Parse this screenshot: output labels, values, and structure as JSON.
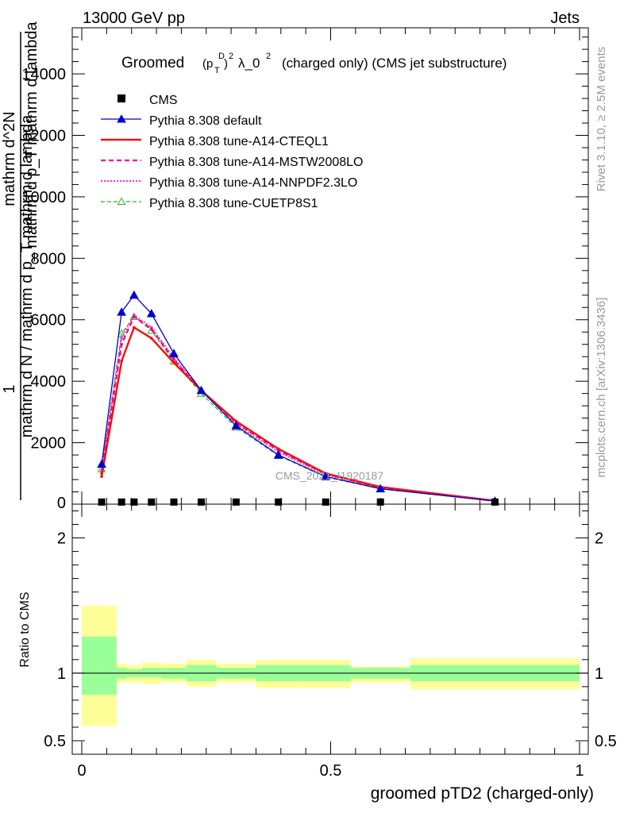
{
  "header": {
    "left": "13000 GeV pp",
    "right": "Jets"
  },
  "side_labels": {
    "rivet": "Rivet 3.1.10, ≥ 2.5M events",
    "mcplots": "mcplots.cern.ch [arXiv:1306.3436]"
  },
  "watermark": "CMS_2021_I1920187",
  "chart_data": [
    {
      "type": "line",
      "title_main": "Groomed",
      "title_p": "(p",
      "title_p_sub": "T",
      "title_p_sup": "D",
      "title_close": ")",
      "title_sq": "2",
      "title_lambda": "λ_0",
      "title_rest": "(charged only) (CMS jet substructure)",
      "ylabel": "mathrm d N / mathrm d p_T mathrm d lambda",
      "ylabel_frac": "mathrm d^2N",
      "ylabel_frac_den": "mathrm d p_T mathrm d lambda",
      "ylabel_one": "1",
      "xlim": [
        0,
        1
      ],
      "ylim": [
        0,
        15500
      ],
      "yticks": [
        2000,
        4000,
        6000,
        8000,
        10000,
        12000,
        14000
      ],
      "ytick_labels": [
        "2000",
        "4000",
        "6000",
        "8000",
        "10000",
        "12000",
        "14000"
      ],
      "ytick_zero": "0",
      "x": [
        0.04,
        0.08,
        0.105,
        0.14,
        0.185,
        0.24,
        0.31,
        0.395,
        0.49,
        0.6,
        0.83
      ],
      "series": [
        {
          "name": "CMS",
          "values": [
            30,
            30,
            30,
            30,
            30,
            30,
            30,
            30,
            30,
            30,
            30
          ]
        },
        {
          "name": "Pythia 8.308 default",
          "values": [
            1300,
            6250,
            6800,
            6200,
            4900,
            3700,
            2550,
            1600,
            900,
            500,
            100
          ]
        },
        {
          "name": "Pythia 8.308 tune-A14-CTEQL1",
          "values": [
            900,
            4650,
            5750,
            5400,
            4600,
            3700,
            2700,
            1800,
            1000,
            560,
            110
          ]
        },
        {
          "name": "Pythia 8.308 tune-A14-MSTW2008LO",
          "values": [
            1000,
            5200,
            6100,
            5700,
            4700,
            3700,
            2650,
            1750,
            980,
            540,
            105
          ]
        },
        {
          "name": "Pythia 8.308 tune-A14-NNPDF2.3LO",
          "values": [
            1100,
            5400,
            6150,
            5750,
            4750,
            3700,
            2600,
            1700,
            960,
            530,
            105
          ]
        },
        {
          "name": "Pythia 8.308 tune-CUETP8S1",
          "values": [
            1150,
            5550,
            6100,
            5650,
            4650,
            3600,
            2500,
            1580,
            880,
            500,
            100
          ]
        }
      ],
      "colors": {
        "CMS": "#000000",
        "default": "#0000cc",
        "cteql1": "#ee1111",
        "mstw": "#ff0088",
        "nnpdf": "#ff33cc",
        "cuetp8s1": "#22bb22"
      }
    },
    {
      "type": "area",
      "ylabel": "Ratio to CMS",
      "xlabel": "groomed pTD2 (charged-only)",
      "xlim": [
        0,
        1
      ],
      "ylim": [
        0.4,
        2.25
      ],
      "xticks": [
        0,
        0.5,
        1
      ],
      "xtick_labels": [
        "0",
        "0.5",
        "1"
      ],
      "yticks": [
        0.5,
        1,
        2
      ],
      "ytick_labels": [
        "0.5",
        "1",
        "2"
      ],
      "bin_edges": [
        0.0,
        0.07,
        0.09,
        0.12,
        0.16,
        0.21,
        0.27,
        0.35,
        0.44,
        0.54,
        0.66,
        1.0
      ],
      "inner_low": [
        0.84,
        0.96,
        0.97,
        0.97,
        0.96,
        0.94,
        0.96,
        0.94,
        0.94,
        0.96,
        0.94
      ],
      "inner_high": [
        1.27,
        1.04,
        1.03,
        1.04,
        1.04,
        1.06,
        1.04,
        1.06,
        1.06,
        1.04,
        1.06
      ],
      "outer_low": [
        0.61,
        0.93,
        0.93,
        0.92,
        0.93,
        0.9,
        0.93,
        0.89,
        0.89,
        0.93,
        0.88
      ],
      "outer_high": [
        1.5,
        1.07,
        1.06,
        1.08,
        1.07,
        1.1,
        1.07,
        1.1,
        1.1,
        1.05,
        1.11
      ],
      "colors": {
        "inner": "#99ff99",
        "outer": "#ffff99"
      }
    }
  ]
}
